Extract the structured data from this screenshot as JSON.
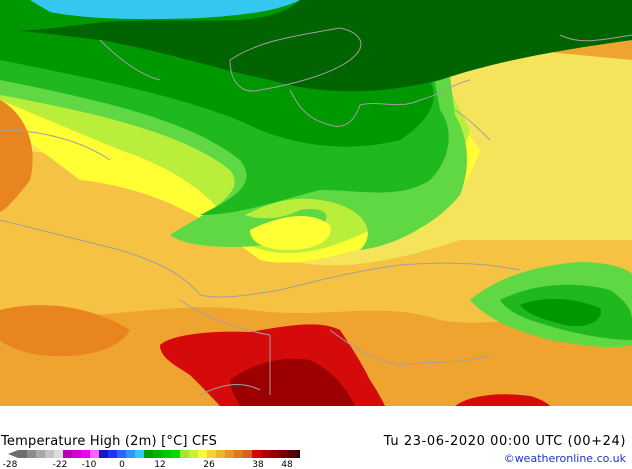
{
  "map": {
    "title": "Temperature High (2m) [°C] CFS",
    "valid_time": "Tu 23-06-2020 00:00 UTC (00+24)",
    "credit": "©weatheronline.co.uk"
  },
  "colors": {
    "teal": "#34c8f0",
    "dark_green": "#006400",
    "green": "#009800",
    "mid_green": "#1fb91f",
    "light_green": "#5fd843",
    "yellow_green": "#b9ef3a",
    "yellow": "#ffff33",
    "pale_yellow": "#f5e35b",
    "light_orange": "#f6c243",
    "orange": "#f0a430",
    "dark_orange": "#e8851f",
    "red": "#d50a0a",
    "dark_red": "#9c0000",
    "border": "#a0a0a0"
  },
  "scale": {
    "labels": [
      "-28",
      "-22",
      "-10",
      "0",
      "12",
      "26",
      "38",
      "48"
    ],
    "colors": [
      "#6e6e6e",
      "#8c8c8c",
      "#a8a8a8",
      "#c3c3c3",
      "#dcdcdc",
      "#b400b4",
      "#d200d2",
      "#f000f0",
      "#ff64ff",
      "#1414c8",
      "#1e32ff",
      "#2864ff",
      "#3296ff",
      "#34c8f0",
      "#00a000",
      "#00b400",
      "#00c800",
      "#00dc00",
      "#a0e632",
      "#c8f032",
      "#fafa32",
      "#f5d232",
      "#f0b428",
      "#e69628",
      "#dc781e",
      "#d2641e",
      "#dc0000",
      "#b40000",
      "#960000",
      "#780000",
      "#5a0000",
      "#3c0000"
    ]
  }
}
